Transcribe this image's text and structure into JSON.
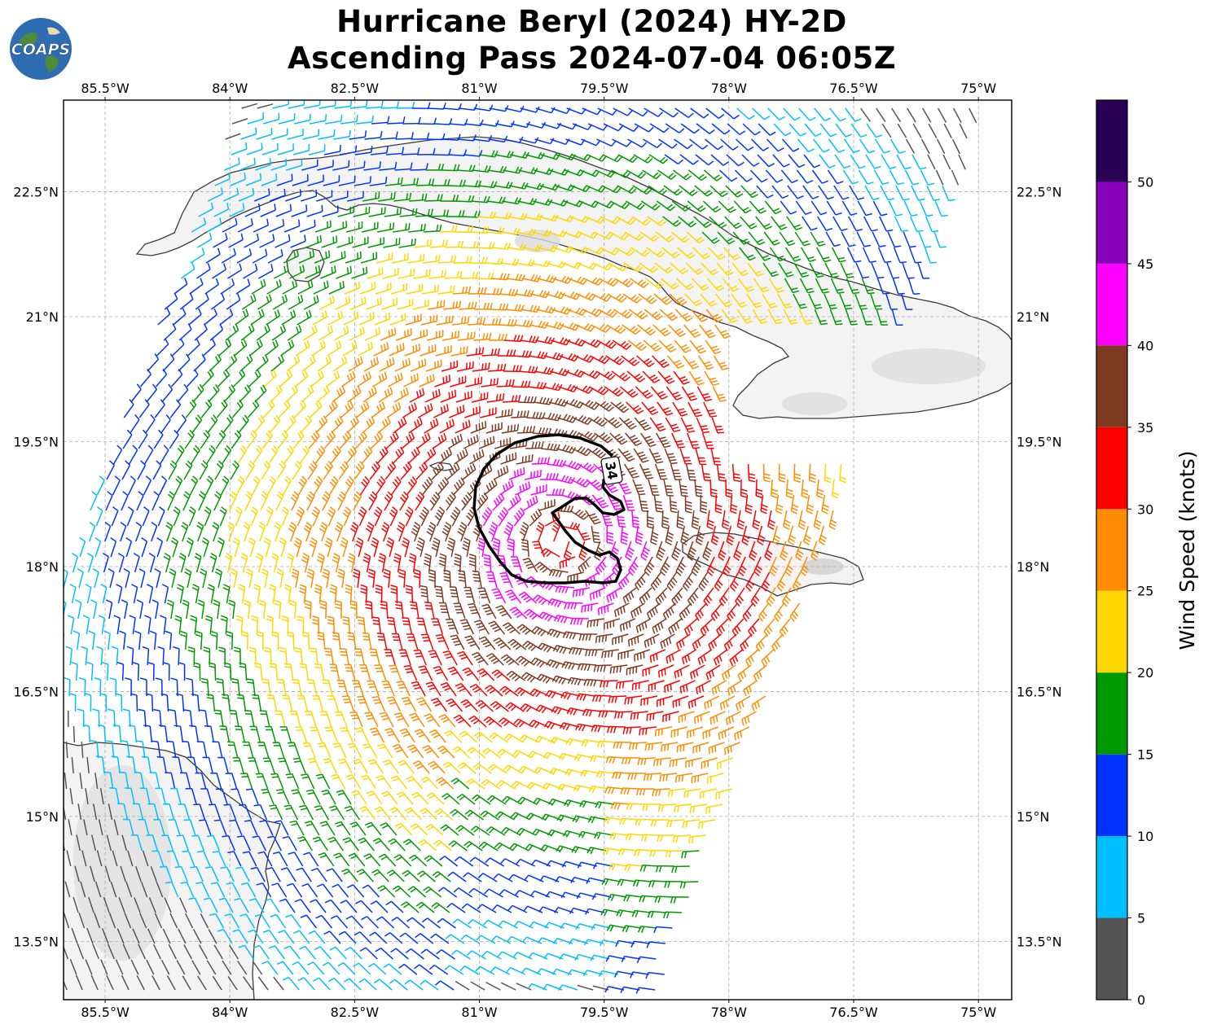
{
  "logo": {
    "text": "COAPS"
  },
  "title": {
    "line1": "Hurricane Beryl (2024) HY-2D",
    "line2": "Ascending Pass 2024-07-04 06:05Z"
  },
  "map": {
    "lon_range": [
      -86.0,
      -74.6
    ],
    "lat_range": [
      12.8,
      23.6
    ],
    "lon_ticks": [
      {
        "value": -85.5,
        "label": "85.5°W"
      },
      {
        "value": -84.0,
        "label": "84°W"
      },
      {
        "value": -82.5,
        "label": "82.5°W"
      },
      {
        "value": -81.0,
        "label": "81°W"
      },
      {
        "value": -79.5,
        "label": "79.5°W"
      },
      {
        "value": -78.0,
        "label": "78°W"
      },
      {
        "value": -76.5,
        "label": "76.5°W"
      },
      {
        "value": -75.0,
        "label": "75°W"
      }
    ],
    "lat_ticks": [
      {
        "value": 22.5,
        "label": "22.5°N"
      },
      {
        "value": 21.0,
        "label": "21°N"
      },
      {
        "value": 19.5,
        "label": "19.5°N"
      },
      {
        "value": 18.0,
        "label": "18°N"
      },
      {
        "value": 16.5,
        "label": "16.5°N"
      },
      {
        "value": 15.0,
        "label": "15°N"
      },
      {
        "value": 13.5,
        "label": "13.5°N"
      }
    ],
    "grid": true,
    "storm_center": {
      "lon": -80.0,
      "lat": 18.3
    },
    "contour_label": "34",
    "contour_value_knots": 34,
    "land_color": "#f4f4f4",
    "coast_color": "#3a3a3a"
  },
  "colorbar": {
    "label": "Wind Speed (knots)",
    "ticks": [
      "0",
      "5",
      "10",
      "15",
      "20",
      "25",
      "30",
      "35",
      "40",
      "45",
      "50"
    ],
    "bins": [
      {
        "min": 0,
        "max": 5,
        "color": "#555555"
      },
      {
        "min": 5,
        "max": 10,
        "color": "#00bfff"
      },
      {
        "min": 10,
        "max": 15,
        "color": "#0033ff"
      },
      {
        "min": 15,
        "max": 20,
        "color": "#009900"
      },
      {
        "min": 20,
        "max": 25,
        "color": "#ffd700"
      },
      {
        "min": 25,
        "max": 30,
        "color": "#ff8c00"
      },
      {
        "min": 30,
        "max": 35,
        "color": "#ff0000"
      },
      {
        "min": 35,
        "max": 40,
        "color": "#7f3a22"
      },
      {
        "min": 40,
        "max": 45,
        "color": "#ff00ff"
      },
      {
        "min": 45,
        "max": 50,
        "color": "#8800bb"
      },
      {
        "min": 50,
        "max": 55,
        "color": "#2a0055"
      }
    ]
  }
}
